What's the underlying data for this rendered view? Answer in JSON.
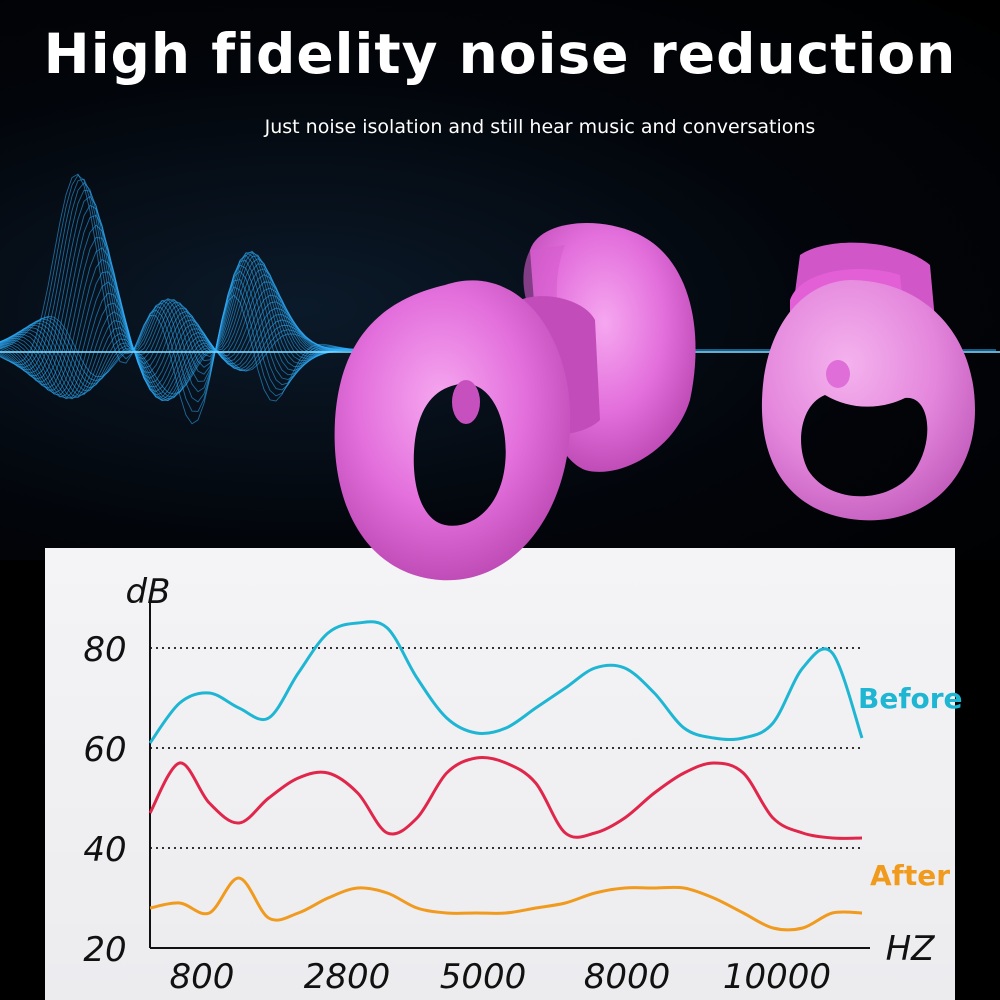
{
  "header": {
    "title": "High fidelity noise reduction",
    "subtitle": "Just noise isolation and still hear music and conversations"
  },
  "colors": {
    "before": "#1fb6d4",
    "middle": "#e0264a",
    "after": "#f09a1e",
    "earplug": "#e070d8",
    "wave": "#2fb0ff"
  },
  "chart_data": {
    "type": "line",
    "ylabel": "dB",
    "xlabel": "HZ",
    "ylim": [
      20,
      88
    ],
    "y_ticks": [
      20,
      40,
      60,
      80
    ],
    "gridlines_at": [
      40,
      60,
      80
    ],
    "x_tick_labels": [
      "800",
      "2800",
      "5000",
      "8000",
      "10000"
    ],
    "legend_placement": "right",
    "series": [
      {
        "name": "Before",
        "color": "#1fb6d4",
        "x": [
          0,
          500,
          1000,
          1500,
          2000,
          2500,
          3000,
          3500,
          4000,
          4500,
          5000,
          5500,
          6000,
          6500,
          7000,
          7500,
          8000,
          8500,
          9000,
          9500,
          10000,
          10500,
          11000,
          11500,
          12000
        ],
        "y": [
          61,
          69,
          71,
          68,
          66,
          75,
          83,
          85,
          84,
          74,
          66,
          63,
          64,
          68,
          72,
          76,
          76,
          71,
          64,
          62,
          62,
          65,
          76,
          79,
          62
        ]
      },
      {
        "name": "",
        "color": "#e0264a",
        "x": [
          0,
          500,
          1000,
          1500,
          2000,
          2500,
          3000,
          3500,
          4000,
          4500,
          5000,
          5500,
          6000,
          6500,
          7000,
          7500,
          8000,
          8500,
          9000,
          9500,
          10000,
          10500,
          11000,
          11500,
          12000
        ],
        "y": [
          47,
          57,
          49,
          45,
          50,
          54,
          55,
          51,
          43,
          46,
          55,
          58,
          57,
          53,
          43,
          43,
          46,
          51,
          55,
          57,
          55,
          46,
          43,
          42,
          42
        ],
        "_note_unused": null
      },
      {
        "name": "After",
        "color": "#f09a1e",
        "x": [
          0,
          500,
          1000,
          1500,
          2000,
          2500,
          3000,
          3500,
          4000,
          4500,
          5000,
          5500,
          6000,
          6500,
          7000,
          7500,
          8000,
          8500,
          9000,
          9500,
          10000,
          10500,
          11000,
          11500,
          12000
        ],
        "y": [
          28,
          29,
          27,
          34,
          26,
          27,
          30,
          32,
          31,
          28,
          27,
          27,
          27,
          28,
          29,
          31,
          32,
          32,
          32,
          30,
          27,
          24,
          24,
          27,
          27
        ]
      }
    ]
  }
}
